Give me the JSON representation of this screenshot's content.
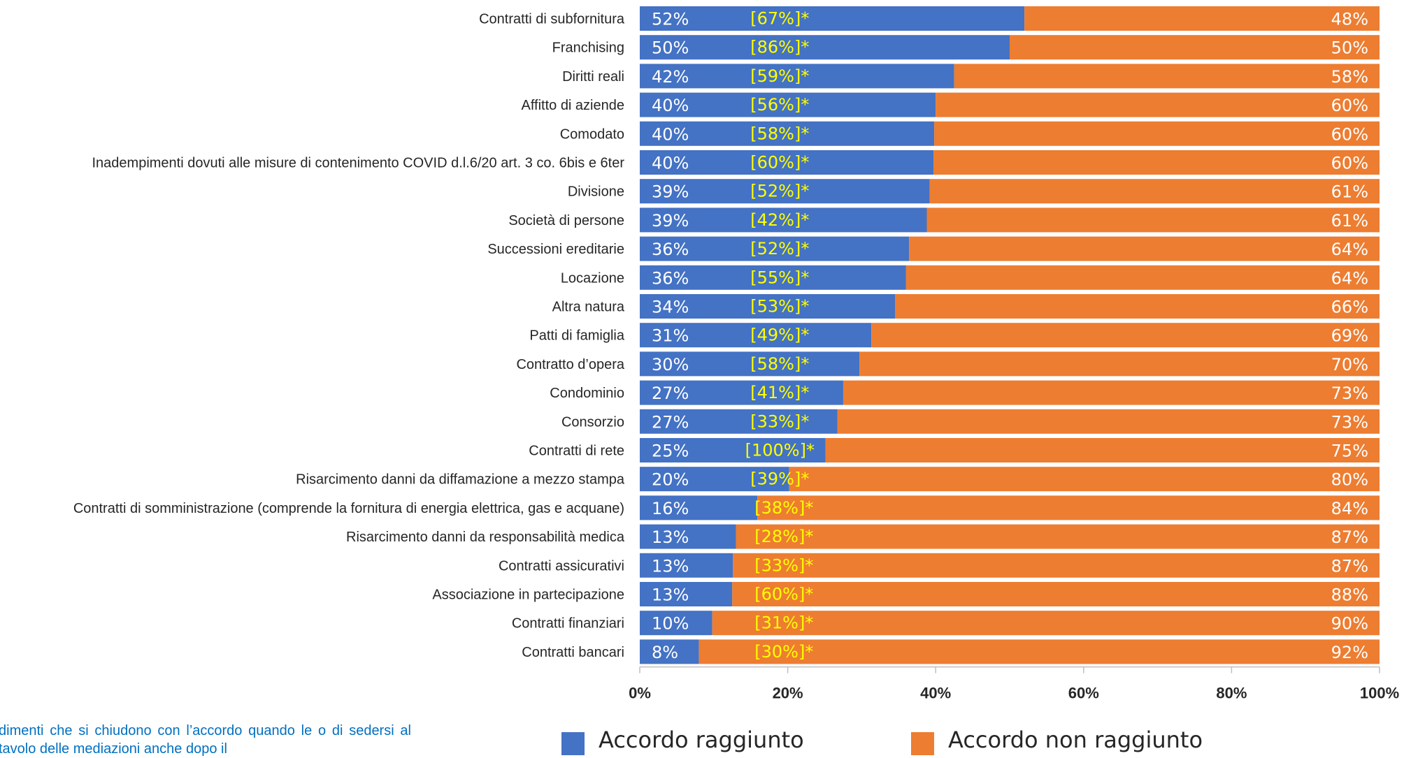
{
  "chart_data": {
    "type": "bar",
    "orientation": "horizontal",
    "stacked": true,
    "categories": [
      "Contratti di subfornitura",
      "Franchising",
      "Diritti reali",
      "Affitto di aziende",
      "Comodato",
      "Inadempimenti dovuti alle misure di contenimento COVID d.l.6/20 art. 3 co. 6bis e 6ter",
      "Divisione",
      "Società di persone",
      "Successioni ereditarie",
      "Locazione",
      "Altra natura",
      "Patti di famiglia",
      "Contratto d’opera",
      "Condominio",
      "Consorzio",
      "Contratti di rete",
      "Risarcimento danni da diffamazione a mezzo stampa",
      "Contratti di somministrazione (comprende la fornitura di energia elettrica, gas e acquane)",
      "Risarcimento danni da responsabilità medica",
      "Contratti assicurativi",
      "Associazione in partecipazione",
      "Contratti finanziari",
      "Contratti bancari"
    ],
    "series": [
      {
        "name": "Accordo raggiunto",
        "color": "#4472c4",
        "values": [
          52,
          50,
          42.5,
          40,
          39.8,
          39.7,
          39.2,
          38.8,
          36.4,
          36,
          34.5,
          31.3,
          29.7,
          27.5,
          26.7,
          25.1,
          20.2,
          15.9,
          13,
          12.6,
          12.5,
          9.8,
          8
        ],
        "labels": [
          "52%",
          "50%",
          "42%",
          "40%",
          "40%",
          "40%",
          "39%",
          "39%",
          "36%",
          "36%",
          "34%",
          "31%",
          "30%",
          "27%",
          "27%",
          "25%",
          "20%",
          "16%",
          "13%",
          "13%",
          "13%",
          "10%",
          "8%"
        ]
      },
      {
        "name": "Accordo non raggiunto",
        "color": "#ed7d31",
        "values": [
          48,
          50,
          57.5,
          60,
          60.2,
          60.3,
          60.8,
          61.2,
          63.6,
          64,
          65.5,
          68.7,
          70.3,
          72.5,
          73.3,
          74.9,
          79.8,
          84.1,
          87,
          87.4,
          87.5,
          90.2,
          92
        ],
        "labels": [
          "48%",
          "50%",
          "58%",
          "60%",
          "60%",
          "60%",
          "61%",
          "61%",
          "64%",
          "64%",
          "66%",
          "69%",
          "70%",
          "73%",
          "73%",
          "75%",
          "80%",
          "84%",
          "87%",
          "87%",
          "88%",
          "90%",
          "92%"
        ]
      }
    ],
    "bracket_annotations": [
      "[67%]*",
      "[86%]*",
      "[59%]*",
      "[56%]*",
      "[58%]*",
      "[60%]*",
      "[52%]*",
      "[42%]*",
      "[52%]*",
      "[55%]*",
      "[53%]*",
      "[49%]*",
      "[58%]*",
      "[41%]*",
      "[33%]*",
      "[100%]*",
      "[39%]*",
      "[38%]*",
      "[28%]*",
      "[33%]*",
      "[60%]*",
      "[31%]*",
      "[30%]*"
    ],
    "bracket_color": "#ffff00",
    "xlim": [
      0,
      100
    ],
    "x_ticks": [
      "0%",
      "20%",
      "40%",
      "60%",
      "80%",
      "100%"
    ],
    "grid": false,
    "legend_position": "bottom"
  },
  "legend": {
    "items": [
      {
        "label": "Accordo raggiunto",
        "color": "#4472c4"
      },
      {
        "label": "Accordo non raggiunto",
        "color": "#ed7d31"
      }
    ]
  },
  "footnote": {
    "text": "dimenti che si chiudono con l’accordo quando le o di sedersi al tavolo delle mediazioni anche dopo il"
  }
}
